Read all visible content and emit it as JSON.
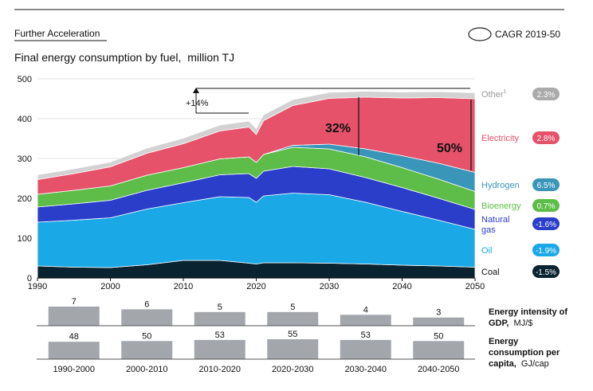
{
  "header": {
    "section_label": "Further Acceleration",
    "cagr_legend": "CAGR 2019-50"
  },
  "chart_data": [
    {
      "type": "area",
      "stacked": true,
      "title": "Final energy consumption by fuel,",
      "unit": "million TJ",
      "ylim": [
        0,
        500
      ],
      "yticks": [
        0,
        100,
        200,
        300,
        400,
        500
      ],
      "xlim": [
        1990,
        2050
      ],
      "xticks": [
        1990,
        2000,
        2010,
        2020,
        2030,
        2040,
        2050
      ],
      "x": [
        1990,
        1995,
        2000,
        2005,
        2010,
        2015,
        2019,
        2020,
        2021,
        2025,
        2030,
        2035,
        2040,
        2045,
        2050
      ],
      "series": [
        {
          "name": "Coal",
          "cagr": "-1.5%",
          "color": "#0a2330",
          "values": [
            30,
            27,
            26,
            33,
            44,
            44,
            37,
            35,
            38,
            38,
            37,
            35,
            32,
            30,
            27
          ]
        },
        {
          "name": "Oil",
          "cagr": "-1.9%",
          "color": "#1aa8e6",
          "values": [
            110,
            118,
            125,
            140,
            145,
            160,
            165,
            155,
            168,
            175,
            172,
            155,
            135,
            115,
            95
          ]
        },
        {
          "name": "Natural gas",
          "cagr": "-1.6%",
          "color": "#2a3ec9",
          "values": [
            38,
            41,
            44,
            47,
            50,
            55,
            60,
            60,
            62,
            67,
            65,
            62,
            60,
            55,
            50
          ]
        },
        {
          "name": "Bioenergy",
          "cagr": "0.7%",
          "color": "#5dbd48",
          "values": [
            32,
            34,
            36,
            38,
            38,
            40,
            42,
            40,
            42,
            48,
            50,
            52,
            50,
            48,
            45
          ]
        },
        {
          "name": "Hydrogen",
          "cagr": "6.5%",
          "color": "#3a96b9",
          "values": [
            0,
            0,
            0,
            0,
            0,
            0,
            0,
            0,
            0,
            5,
            12,
            20,
            30,
            40,
            48
          ]
        },
        {
          "name": "Electricity",
          "cagr": "2.8%",
          "color": "#e5526a",
          "values": [
            37,
            42,
            48,
            55,
            60,
            70,
            75,
            70,
            85,
            100,
            115,
            130,
            145,
            165,
            185
          ]
        },
        {
          "name": "Other",
          "footnote": "1",
          "cagr": "2.3%",
          "color": "#d2d2d2",
          "values": [
            12,
            12,
            12,
            13,
            14,
            15,
            15,
            15,
            15,
            15,
            15,
            15,
            15,
            15,
            15
          ]
        }
      ],
      "annotations": {
        "growth_2012_2019": "+14%",
        "electricity_share_2034": "32%",
        "electricity_share_2050": "50%"
      }
    },
    {
      "type": "bar",
      "title": "Energy intensity of GDP,",
      "unit": "MJ/$",
      "categories": [
        "1990-2000",
        "2000-2010",
        "2010-2020",
        "2020-2030",
        "2030-2040",
        "2040-2050"
      ],
      "values": [
        7,
        6,
        5,
        5,
        4,
        3
      ],
      "value_labels": [
        "7",
        "6",
        "5",
        "5",
        "4",
        "3"
      ]
    },
    {
      "type": "bar",
      "title": "Energy consumption per capita,",
      "unit": "GJ/cap",
      "categories": [
        "1990-2000",
        "2000-2010",
        "2010-2020",
        "2020-2030",
        "2030-2040",
        "2040-2050"
      ],
      "values": [
        48,
        50,
        53,
        55,
        53,
        50
      ],
      "value_labels": [
        "48",
        "50",
        "53",
        "55",
        "53",
        "50"
      ]
    }
  ]
}
